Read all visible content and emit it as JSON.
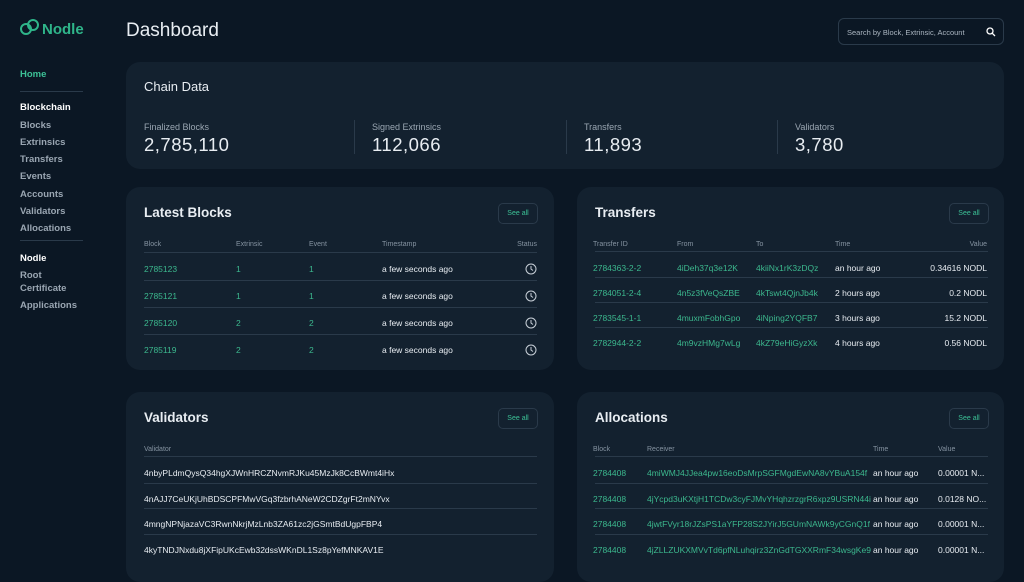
{
  "brand": "Nodle",
  "nav": {
    "home": "Home",
    "sections": [
      {
        "title": "Blockchain",
        "items": [
          "Blocks",
          "Extrinsics",
          "Transfers",
          "Events",
          "Accounts",
          "Validators",
          "Allocations"
        ]
      },
      {
        "title": "Nodle",
        "items": [
          "Root Certificate",
          "Applications"
        ]
      }
    ]
  },
  "header": {
    "title": "Dashboard",
    "search_placeholder": "Search by Block, Extrinsic, Account"
  },
  "chain_data": {
    "title": "Chain Data",
    "stats": [
      {
        "label": "Finalized Blocks",
        "value": "2,785,110"
      },
      {
        "label": "Signed Extrinsics",
        "value": "112,066"
      },
      {
        "label": "Transfers",
        "value": "11,893"
      },
      {
        "label": "Validators",
        "value": "3,780"
      }
    ]
  },
  "latest_blocks": {
    "title": "Latest Blocks",
    "button": "See all",
    "columns": [
      "Block",
      "Extrinsic",
      "Event",
      "Timestamp",
      "Status"
    ],
    "rows": [
      [
        "2785123",
        "1",
        "1",
        "a few seconds ago"
      ],
      [
        "2785121",
        "1",
        "1",
        "a few seconds ago"
      ],
      [
        "2785120",
        "2",
        "2",
        "a few seconds ago"
      ],
      [
        "2785119",
        "2",
        "2",
        "a few seconds ago"
      ]
    ]
  },
  "transfers": {
    "title": "Transfers",
    "button": "See all",
    "columns": [
      "Transfer ID",
      "From",
      "To",
      "Time",
      "Value"
    ],
    "rows": [
      [
        "2784363-2-2",
        "4iDeh37q3e12K",
        "4kiiNx1rK3zDQz",
        "an hour ago",
        "0.34616 NODL"
      ],
      [
        "2784051-2-4",
        "4n5z3fVeQsZBE",
        "4kTswt4QjnJb4k",
        "2 hours ago",
        "0.2 NODL"
      ],
      [
        "2783545-1-1",
        "4muxmFobhGpo",
        "4iNping2YQFB7",
        "3 hours ago",
        "15.2 NODL"
      ],
      [
        "2782944-2-2",
        "4m9vzHMg7wLg",
        "4kZ79eHiGyzXk",
        "4 hours ago",
        "0.56 NODL"
      ]
    ]
  },
  "validators": {
    "title": "Validators",
    "button": "See all",
    "columns": [
      "Validator"
    ],
    "rows": [
      [
        "4nbyPLdmQysQ34hgXJWnHRCZNvmRJKu45MzJk8CcBWmt4iHx"
      ],
      [
        "4nAJJ7CeUKjUhBDSCPFMwVGq3fzbrhANeW2CDZgrFt2mNYvx"
      ],
      [
        "4mngNPNjazaVC3RwnNkrjMzLnb3ZA61zc2jGSmtBdUgpFBP4"
      ],
      [
        "4kyTNDJNxdu8jXFipUKcEwb32dssWKnDL1Sz8pYefMNKAV1E"
      ]
    ]
  },
  "allocations": {
    "title": "Allocations",
    "button": "See all",
    "columns": [
      "Block",
      "Receiver",
      "Time",
      "Value"
    ],
    "rows": [
      [
        "2784408",
        "4miWMJ4JJea4pw16eoDsMrpSGFMgdEwNA8vYBuA154f",
        "an hour ago",
        "0.00001 N..."
      ],
      [
        "2784408",
        "4jYcpd3uKXtjH1TCDw3cyFJMvYHqhzrzgrR6xpz9USRN44i",
        "an hour ago",
        "0.0128 NO..."
      ],
      [
        "2784408",
        "4jwtFVyr18rJZsPS1aYFP28S2JYirJ5GUmNAWk9yCGnQ1f",
        "an hour ago",
        "0.00001 N..."
      ],
      [
        "2784408",
        "4jZLLZUKXMVvTd6pfNLuhqirz3ZnGdTGXXRmF34wsgKe9",
        "an hour ago",
        "0.00001 N..."
      ]
    ]
  }
}
